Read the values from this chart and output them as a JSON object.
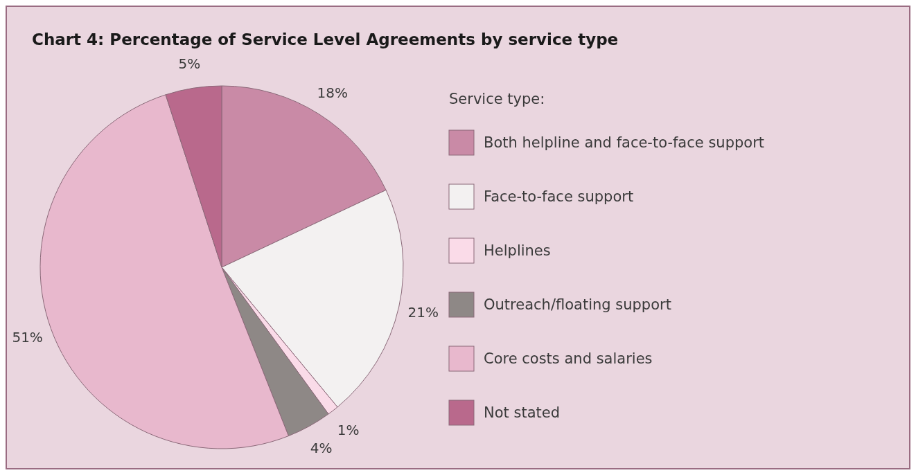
{
  "chart_data": {
    "type": "pie",
    "title": "Chart 4: Percentage of Service Level Agreements by service type",
    "legend_title": "Service type:",
    "legend": "right",
    "categories": [
      "Both helpline and face-to-face support",
      "Face-to-face support",
      "Helplines",
      "Outreach/floating support",
      "Core costs and salaries",
      "Not stated"
    ],
    "values": [
      18,
      21,
      1,
      4,
      51,
      5
    ],
    "colors": [
      "#c98aa6",
      "#f3f1f1",
      "#fadbe8",
      "#8e8886",
      "#e8b8cd",
      "#b9698c"
    ],
    "value_labels": [
      "18%",
      "21%",
      "1%",
      "4%",
      "51%",
      "5%"
    ],
    "data_labels": true
  }
}
